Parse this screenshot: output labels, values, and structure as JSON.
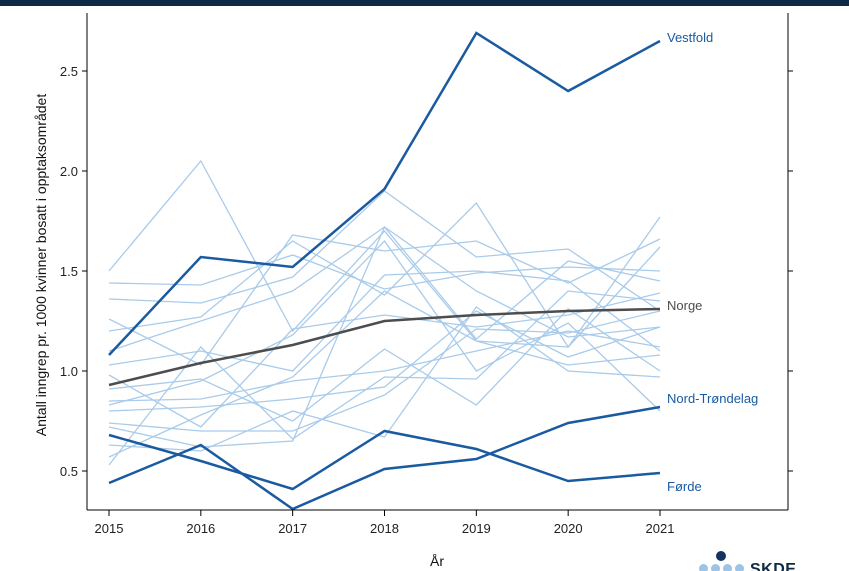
{
  "chart_data": {
    "type": "line",
    "xlabel": "År",
    "ylabel": "Antall inngrep pr. 1000 kvinner bosatt i opptaksområdet",
    "x": [
      2015,
      2016,
      2017,
      2018,
      2019,
      2020,
      2021
    ],
    "xlim": [
      2015,
      2021
    ],
    "ylim": [
      0.3,
      2.75
    ],
    "yticks": [
      0.5,
      1.0,
      1.5,
      2.0,
      2.5
    ],
    "ytick_labels": [
      "0.5",
      "1.0",
      "1.5",
      "2.0",
      "2.5"
    ],
    "grid": false,
    "colors": {
      "highlight": "#1a5aa0",
      "background": "#a9cbea",
      "national": "#4d4d4d"
    },
    "series": [
      {
        "name": "Vestfold",
        "role": "highlight",
        "values": [
          1.08,
          1.57,
          1.52,
          1.91,
          2.69,
          2.4,
          2.65
        ]
      },
      {
        "name": "Norge",
        "role": "national",
        "values": [
          0.93,
          1.04,
          1.13,
          1.25,
          1.28,
          1.3,
          1.31
        ]
      },
      {
        "name": "Nord-Trøndelag",
        "role": "highlight",
        "values": [
          0.44,
          0.63,
          0.31,
          0.51,
          0.56,
          0.74,
          0.82
        ]
      },
      {
        "name": "Førde",
        "role": "highlight",
        "values": [
          0.68,
          0.55,
          0.41,
          0.7,
          0.61,
          0.45,
          0.49
        ]
      },
      {
        "role": "background",
        "values": [
          1.5,
          2.05,
          1.2,
          1.7,
          1.15,
          1.12,
          1.77
        ]
      },
      {
        "role": "background",
        "values": [
          1.44,
          1.43,
          1.58,
          1.41,
          1.49,
          1.52,
          1.5
        ]
      },
      {
        "role": "background",
        "values": [
          1.36,
          1.34,
          1.47,
          1.9,
          1.57,
          1.61,
          1.3
        ]
      },
      {
        "role": "background",
        "values": [
          1.26,
          1.03,
          1.68,
          1.6,
          1.65,
          1.44,
          1.66
        ]
      },
      {
        "role": "background",
        "values": [
          1.2,
          1.27,
          1.65,
          1.38,
          1.84,
          1.12,
          1.62
        ]
      },
      {
        "role": "background",
        "values": [
          1.1,
          1.25,
          1.4,
          1.72,
          1.16,
          1.55,
          1.45
        ]
      },
      {
        "role": "background",
        "values": [
          1.03,
          1.1,
          1.0,
          1.48,
          1.5,
          1.45,
          1.1
        ]
      },
      {
        "role": "background",
        "values": [
          0.98,
          0.72,
          1.21,
          1.28,
          1.22,
          1.28,
          1.39
        ]
      },
      {
        "role": "background",
        "values": [
          0.91,
          0.96,
          0.75,
          1.11,
          0.83,
          1.31,
          1.0
        ]
      },
      {
        "role": "background",
        "values": [
          0.85,
          0.86,
          0.95,
          1.0,
          1.1,
          1.2,
          1.12
        ]
      },
      {
        "role": "background",
        "values": [
          0.8,
          0.82,
          0.86,
          0.92,
          1.3,
          1.07,
          1.22
        ]
      },
      {
        "role": "background",
        "values": [
          0.74,
          0.7,
          0.7,
          0.88,
          1.21,
          1.19,
          1.3
        ]
      },
      {
        "role": "background",
        "values": [
          0.72,
          0.62,
          0.65,
          1.72,
          1.4,
          1.17,
          1.22
        ]
      },
      {
        "role": "background",
        "values": [
          0.63,
          0.6,
          0.8,
          0.67,
          1.32,
          1.0,
          0.97
        ]
      },
      {
        "role": "background",
        "values": [
          0.57,
          0.78,
          0.97,
          1.4,
          1.15,
          1.03,
          1.08
        ]
      },
      {
        "role": "background",
        "values": [
          0.53,
          1.12,
          0.66,
          0.97,
          0.96,
          1.4,
          1.35
        ]
      },
      {
        "role": "background",
        "values": [
          0.83,
          0.95,
          1.18,
          1.65,
          1.0,
          1.24,
          0.8
        ]
      }
    ]
  },
  "logo": {
    "text": "SKDE"
  }
}
